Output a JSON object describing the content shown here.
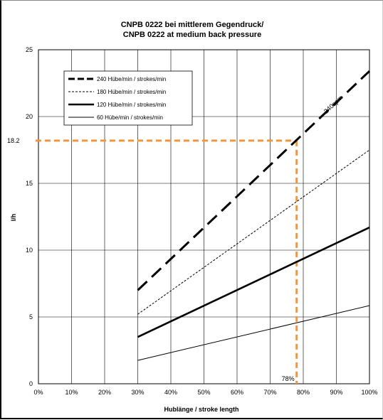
{
  "chart_data": {
    "type": "line",
    "title": "CNPB 0222 bei mittlerem Gegendruck/",
    "subtitle": "CNPB 0222 at medium back pressure",
    "xlabel": "Hublänge / stroke length",
    "ylabel": "l/h",
    "xlim": [
      0,
      100
    ],
    "ylim": [
      0,
      25
    ],
    "x_ticks": [
      "0%",
      "10%",
      "20%",
      "30%",
      "40%",
      "50%",
      "60%",
      "70%",
      "80%",
      "90%",
      "100%"
    ],
    "y_ticks": [
      "0",
      "5",
      "10",
      "15",
      "20",
      "25"
    ],
    "grid": true,
    "legend_position": "top-left",
    "series": [
      {
        "name": "240 Hübe/min / strokes/min",
        "x": [
          30,
          100
        ],
        "y": [
          7.0,
          23.4
        ],
        "style": "long-dash",
        "width": 3
      },
      {
        "name": "180 Hübe/min / strokes/min",
        "x": [
          30,
          100
        ],
        "y": [
          5.2,
          17.5
        ],
        "style": "dotted",
        "width": 1
      },
      {
        "name": "120 Hübe/min / strokes/min",
        "x": [
          30,
          100
        ],
        "y": [
          3.5,
          11.7
        ],
        "style": "solid",
        "width": 2.6
      },
      {
        "name": "60 Hübe/min / strokes/min",
        "x": [
          30,
          100
        ],
        "y": [
          1.75,
          5.85
        ],
        "style": "solid",
        "width": 1
      }
    ],
    "annotations": [
      {
        "text": "240spm",
        "x": 87,
        "y": 20.2,
        "rotation": "along-line"
      },
      {
        "text": "18.2",
        "type": "y-reference",
        "y": 18.2,
        "color": "#f0963c"
      },
      {
        "text": "78%",
        "type": "x-reference",
        "x": 78,
        "color": "#f0963c"
      }
    ]
  }
}
